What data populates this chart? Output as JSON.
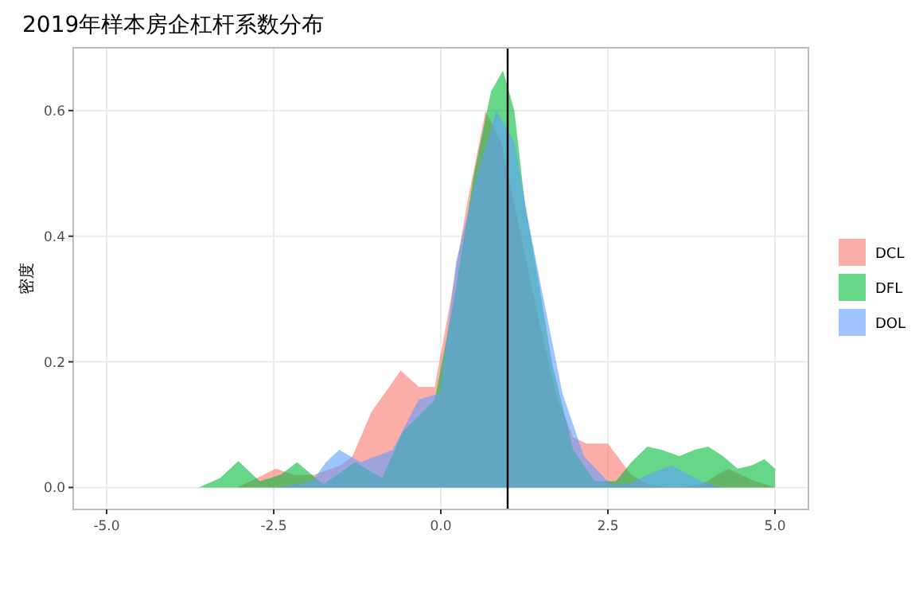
{
  "chart_data": {
    "type": "area",
    "title": "2019年样本房企杠杆系数分布",
    "ylabel": "密度",
    "xlim": [
      -5.5,
      5.5
    ],
    "ylim": [
      -0.035,
      0.7
    ],
    "xticks": [
      {
        "value": -5,
        "label": "-5.0"
      },
      {
        "value": -2.5,
        "label": "-2.5"
      },
      {
        "value": 0,
        "label": "0.0"
      },
      {
        "value": 2.5,
        "label": "2.5"
      },
      {
        "value": 5,
        "label": "5.0"
      }
    ],
    "yticks": [
      {
        "value": 0,
        "label": "0.0"
      },
      {
        "value": 0.2,
        "label": "0.2"
      },
      {
        "value": 0.4,
        "label": "0.4"
      },
      {
        "value": 0.6,
        "label": "0.6"
      }
    ],
    "grid": true,
    "legend": "right",
    "ref_lines": [
      {
        "axis": "x",
        "value": 1,
        "color": "#000000"
      }
    ],
    "series": [
      {
        "name": "DCL",
        "color": "#f8766d",
        "x": [
          -3.05,
          -2.75,
          -2.47,
          -2.2,
          -1.9,
          -1.5,
          -1.32,
          -1.04,
          -0.6,
          -0.33,
          -0.09,
          0.15,
          0.39,
          0.67,
          0.9,
          1.2,
          1.5,
          1.75,
          1.98,
          2.18,
          2.5,
          2.85,
          3.09,
          3.5,
          3.9,
          4.3,
          4.7,
          5.0
        ],
        "values": [
          0,
          0.015,
          0.03,
          0.02,
          0.02,
          0.035,
          0.05,
          0.12,
          0.186,
          0.16,
          0.16,
          0.3,
          0.45,
          0.6,
          0.55,
          0.4,
          0.25,
          0.14,
          0.08,
          0.07,
          0.07,
          0.02,
          0.005,
          0,
          0.005,
          0.03,
          0.01,
          0
        ]
      },
      {
        "name": "DFL",
        "color": "#00ba38",
        "x": [
          -3.62,
          -3.3,
          -3.03,
          -2.71,
          -2.4,
          -2.15,
          -1.76,
          -1.28,
          -0.88,
          -0.56,
          -0.37,
          -0.09,
          0.2,
          0.5,
          0.75,
          0.93,
          1.1,
          1.26,
          1.46,
          1.66,
          1.98,
          2.3,
          2.62,
          2.85,
          3.09,
          3.3,
          3.57,
          3.8,
          4.0,
          4.22,
          4.44,
          4.65,
          4.84,
          5.0
        ],
        "values": [
          0,
          0.015,
          0.042,
          0.01,
          0.02,
          0.04,
          0.005,
          0.04,
          0.015,
          0.09,
          0.11,
          0.14,
          0.3,
          0.5,
          0.63,
          0.664,
          0.6,
          0.45,
          0.33,
          0.2,
          0.06,
          0.01,
          0.01,
          0.04,
          0.065,
          0.06,
          0.05,
          0.06,
          0.065,
          0.05,
          0.03,
          0.035,
          0.045,
          0.03
        ]
      },
      {
        "name": "DOL",
        "color": "#619cff",
        "x": [
          -2.47,
          -1.92,
          -1.72,
          -1.52,
          -1.2,
          -0.72,
          -0.33,
          -0.01,
          0.23,
          0.55,
          0.83,
          1.1,
          1.3,
          1.5,
          1.82,
          2.14,
          2.54,
          2.8,
          3.09,
          3.45,
          3.89,
          4.2
        ],
        "values": [
          0,
          0.01,
          0.04,
          0.06,
          0.04,
          0.06,
          0.14,
          0.15,
          0.36,
          0.5,
          0.6,
          0.55,
          0.43,
          0.32,
          0.15,
          0.05,
          0.005,
          0.005,
          0.02,
          0.035,
          0.01,
          0
        ]
      }
    ]
  }
}
